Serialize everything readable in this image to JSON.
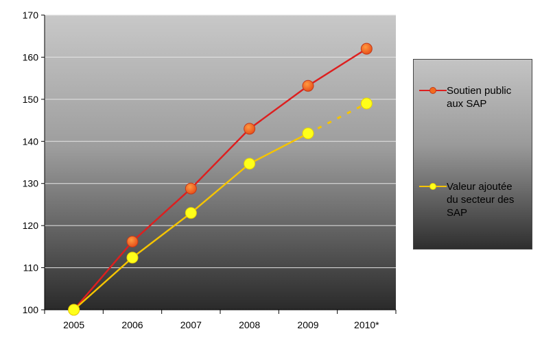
{
  "chart_data": {
    "type": "line",
    "title": "",
    "xlabel": "",
    "ylabel": "",
    "categories": [
      "2005",
      "2006",
      "2007",
      "2008",
      "2009",
      "2010*"
    ],
    "ylim": [
      100,
      170
    ],
    "yticks": [
      100,
      110,
      120,
      130,
      140,
      150,
      160,
      170
    ],
    "grid": true,
    "legend_position": "right",
    "series": [
      {
        "name": "Soutien public\naux SAP",
        "values": [
          100,
          116.2,
          128.8,
          143,
          153.2,
          162
        ],
        "line_color": "#dd1f1f",
        "marker_color": "#f26a1d",
        "dashed_last_segment": false
      },
      {
        "name": "Valeur ajoutée\ndu secteur des\nSAP",
        "values": [
          100,
          112.4,
          123,
          134.7,
          141.9,
          149
        ],
        "line_color": "#f5c400",
        "marker_color": "#ffff1a",
        "dashed_last_segment": true
      }
    ]
  }
}
